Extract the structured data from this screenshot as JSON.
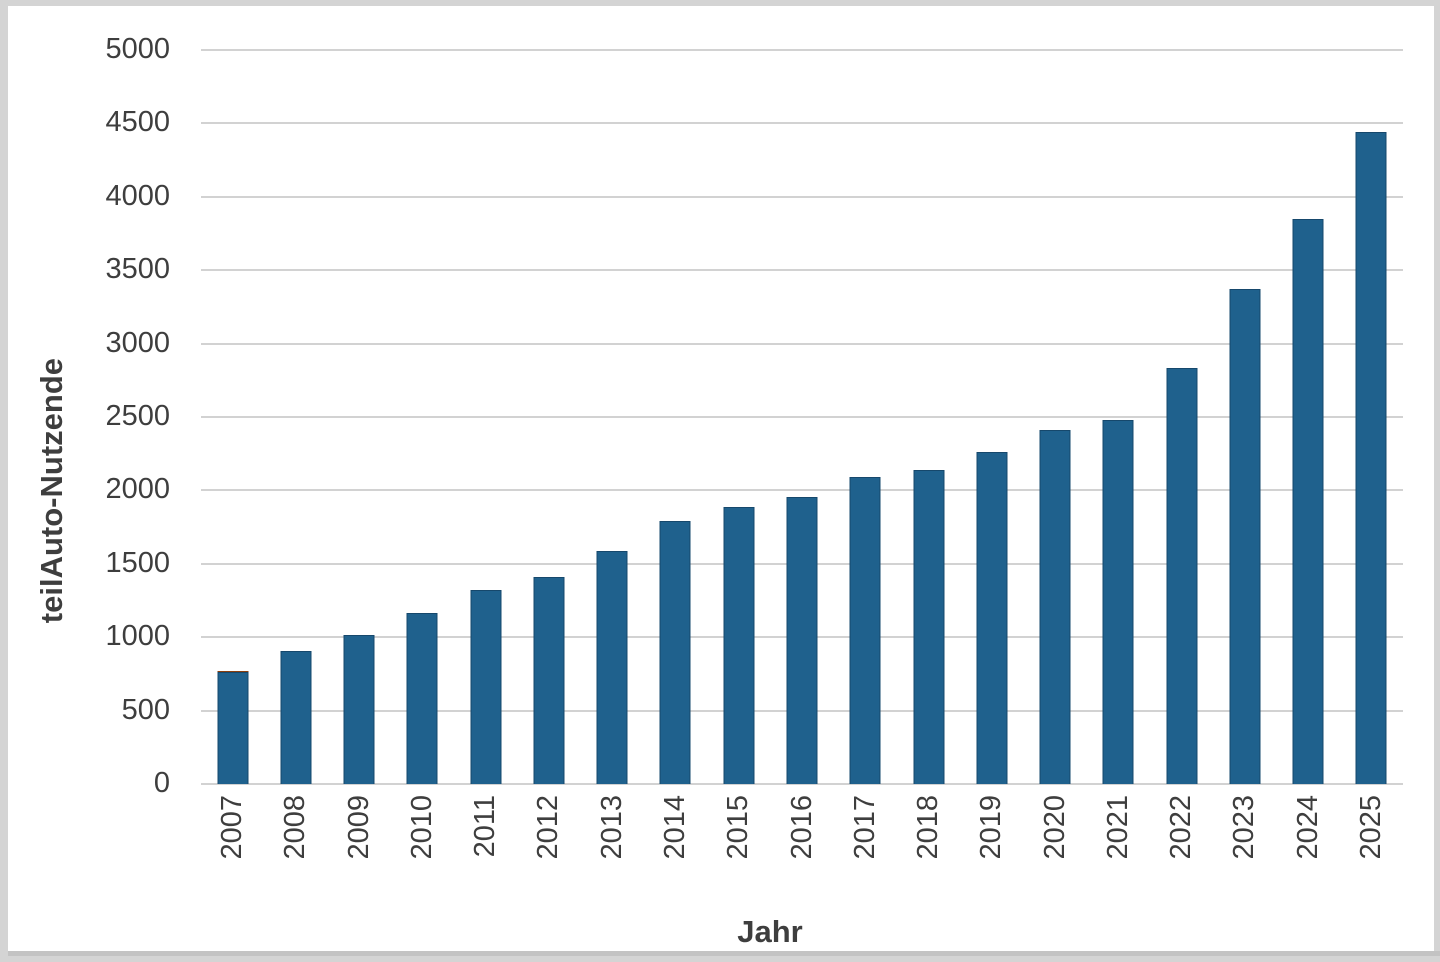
{
  "frame": {
    "border_color": "#d4d4d4",
    "bottom_edge_color": "#c3c3c3",
    "background": "#ffffff"
  },
  "chart_data": {
    "type": "bar",
    "orientation": "vertical",
    "xlabel": "Jahr",
    "ylabel": "teilAuto-Nutzende",
    "ylim": [
      0,
      5000
    ],
    "ytick_step": 500,
    "ytick_labels": [
      "0",
      "500",
      "1000",
      "1500",
      "2000",
      "2500",
      "3000",
      "3500",
      "4000",
      "4500",
      "5000"
    ],
    "grid": true,
    "legend": "none",
    "categories": [
      "2007",
      "2008",
      "2009",
      "2010",
      "2011",
      "2012",
      "2013",
      "2014",
      "2015",
      "2016",
      "2017",
      "2018",
      "2019",
      "2020",
      "2021",
      "2022",
      "2023",
      "2024",
      "2025"
    ],
    "series": [
      {
        "name": "main-series",
        "color": "#1f618d",
        "edge_color": "#16486c",
        "values": [
          760,
          905,
          1015,
          1165,
          1320,
          1410,
          1590,
          1790,
          1890,
          1955,
          2090,
          2140,
          2260,
          2410,
          2480,
          2835,
          3370,
          3850,
          4440
        ]
      },
      {
        "name": "cap-series",
        "color": "#bf5b17",
        "edge_color": "#8a3f0e",
        "values": [
          13,
          0,
          0,
          0,
          0,
          0,
          0,
          0,
          0,
          0,
          0,
          0,
          0,
          0,
          0,
          0,
          0,
          0,
          0
        ]
      }
    ],
    "colors": {
      "gridline": "#d2d2d2",
      "axis_text": "#3e3e3e"
    }
  }
}
